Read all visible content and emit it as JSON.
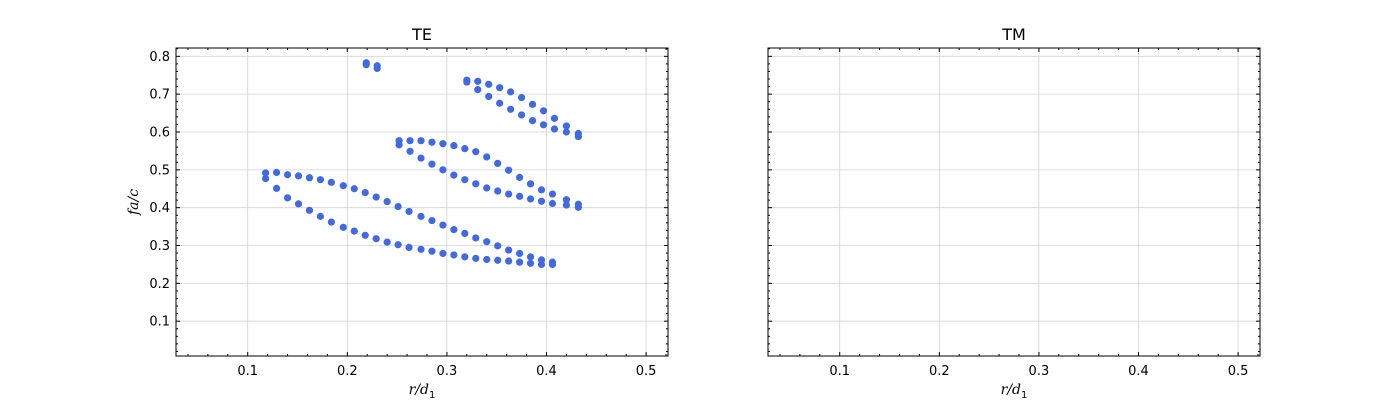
{
  "chart_data": [
    {
      "type": "scatter",
      "title": "TE",
      "xlabel_html": "r/d1",
      "xlabel": {
        "base": "r/d",
        "sub": "1"
      },
      "ylabel": "fa/c",
      "xlim": [
        0.028,
        0.522
      ],
      "ylim": [
        0.008,
        0.822
      ],
      "xticks": [
        0.1,
        0.2,
        0.3,
        0.4,
        0.5
      ],
      "xtick_labels": [
        "0.1",
        "0.2",
        "0.3",
        "0.4",
        "0.5"
      ],
      "yticks": [
        0.1,
        0.2,
        0.3,
        0.4,
        0.5,
        0.6,
        0.7,
        0.8
      ],
      "ytick_labels": [
        "0.1",
        "0.2",
        "0.3",
        "0.4",
        "0.5",
        "0.6",
        "0.7",
        "0.8"
      ],
      "grid": true,
      "marker_color": "#4169e1",
      "series": [
        {
          "x": [
            0.118,
            0.118,
            0.129,
            0.129,
            0.14,
            0.14,
            0.151,
            0.151,
            0.162,
            0.162,
            0.173,
            0.173,
            0.184,
            0.184,
            0.196,
            0.196,
            0.207,
            0.207,
            0.218,
            0.218,
            0.229,
            0.229,
            0.24,
            0.24,
            0.251,
            0.251,
            0.262,
            0.262,
            0.274,
            0.274,
            0.285,
            0.285,
            0.296,
            0.296,
            0.307,
            0.307,
            0.318,
            0.318,
            0.329,
            0.329,
            0.34,
            0.34,
            0.351,
            0.351,
            0.362,
            0.362,
            0.373,
            0.373,
            0.384,
            0.384,
            0.395,
            0.395,
            0.406,
            0.406
          ],
          "y": [
            0.477,
            0.492,
            0.451,
            0.493,
            0.426,
            0.487,
            0.41,
            0.484,
            0.393,
            0.479,
            0.377,
            0.474,
            0.362,
            0.467,
            0.348,
            0.458,
            0.338,
            0.45,
            0.327,
            0.44,
            0.318,
            0.428,
            0.309,
            0.416,
            0.302,
            0.403,
            0.295,
            0.39,
            0.29,
            0.377,
            0.285,
            0.366,
            0.279,
            0.354,
            0.275,
            0.342,
            0.27,
            0.332,
            0.266,
            0.32,
            0.263,
            0.31,
            0.261,
            0.299,
            0.259,
            0.288,
            0.256,
            0.279,
            0.253,
            0.27,
            0.25,
            0.262,
            0.25,
            0.256
          ]
        },
        {
          "x": [
            0.252,
            0.252,
            0.263,
            0.263,
            0.274,
            0.274,
            0.285,
            0.285,
            0.296,
            0.296,
            0.307,
            0.307,
            0.318,
            0.318,
            0.329,
            0.329,
            0.34,
            0.34,
            0.351,
            0.351,
            0.362,
            0.362,
            0.373,
            0.373,
            0.384,
            0.384,
            0.395,
            0.395,
            0.406,
            0.406,
            0.42,
            0.42,
            0.432,
            0.432
          ],
          "y": [
            0.566,
            0.577,
            0.549,
            0.577,
            0.531,
            0.577,
            0.515,
            0.573,
            0.5,
            0.569,
            0.486,
            0.564,
            0.474,
            0.556,
            0.463,
            0.548,
            0.452,
            0.534,
            0.444,
            0.517,
            0.436,
            0.499,
            0.43,
            0.48,
            0.423,
            0.463,
            0.417,
            0.447,
            0.411,
            0.436,
            0.407,
            0.421,
            0.401,
            0.409
          ]
        },
        {
          "x": [
            0.32,
            0.32,
            0.331,
            0.331,
            0.342,
            0.342,
            0.353,
            0.353,
            0.364,
            0.364,
            0.375,
            0.375,
            0.386,
            0.386,
            0.397,
            0.397,
            0.408,
            0.408,
            0.42,
            0.42,
            0.432,
            0.432
          ],
          "y": [
            0.732,
            0.737,
            0.712,
            0.734,
            0.694,
            0.726,
            0.676,
            0.717,
            0.66,
            0.706,
            0.645,
            0.691,
            0.63,
            0.673,
            0.619,
            0.656,
            0.608,
            0.636,
            0.6,
            0.616,
            0.588,
            0.596
          ]
        },
        {
          "x": [
            0.219,
            0.219,
            0.23,
            0.23
          ],
          "y": [
            0.778,
            0.783,
            0.768,
            0.775
          ]
        }
      ]
    },
    {
      "type": "scatter",
      "title": "TM",
      "xlabel": {
        "base": "r/d",
        "sub": "1"
      },
      "ylabel": "",
      "xlim": [
        0.028,
        0.522
      ],
      "ylim": [
        0.008,
        0.822
      ],
      "xticks": [
        0.1,
        0.2,
        0.3,
        0.4,
        0.5
      ],
      "xtick_labels": [
        "0.1",
        "0.2",
        "0.3",
        "0.4",
        "0.5"
      ],
      "yticks": [
        0.1,
        0.2,
        0.3,
        0.4,
        0.5,
        0.6,
        0.7,
        0.8
      ],
      "ytick_labels": [],
      "grid": true,
      "marker_color": "#4169e1",
      "series": []
    }
  ]
}
